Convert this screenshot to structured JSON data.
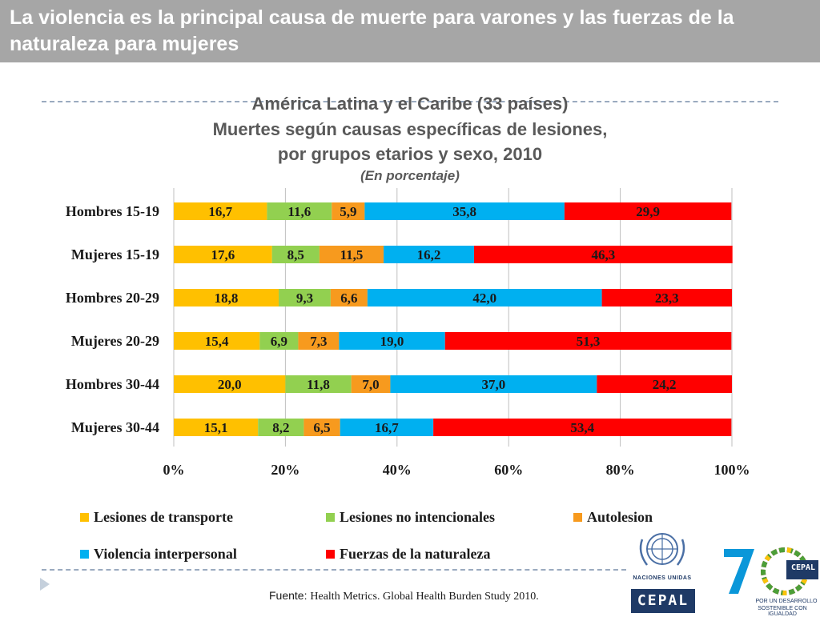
{
  "header": {
    "title": "La violencia es la principal causa de muerte para varones y las fuerzas de la naturaleza para mujeres"
  },
  "chart_data": {
    "type": "bar",
    "orientation": "horizontal",
    "stacked": true,
    "title_lines": [
      "América Latina y el Caribe (33 países)",
      "Muertes según causas específicas de lesiones,",
      "por grupos etarios y sexo, 2010",
      "(En porcentaje)"
    ],
    "categories": [
      "Hombres 15-19",
      "Mujeres 15-19",
      "Hombres 20-29",
      "Mujeres 20-29",
      "Hombres 30-44",
      "Mujeres 30-44"
    ],
    "series": [
      {
        "name": "Lesiones de transporte",
        "color": "#ffc000",
        "values": [
          16.7,
          17.6,
          18.8,
          15.4,
          20.0,
          15.1
        ],
        "labels": [
          "16,7",
          "17,6",
          "18,8",
          "15,4",
          "20,0",
          "15,1"
        ]
      },
      {
        "name": "Lesiones no intencionales",
        "color": "#92d050",
        "values": [
          11.6,
          8.5,
          9.3,
          6.9,
          11.8,
          8.2
        ],
        "labels": [
          "11,6",
          "8,5",
          "9,3",
          "6,9",
          "11,8",
          "8,2"
        ]
      },
      {
        "name": "Autolesion",
        "color": "#f79a1e",
        "values": [
          5.9,
          11.5,
          6.6,
          7.3,
          7.0,
          6.5
        ],
        "labels": [
          "5,9",
          "11,5",
          "6,6",
          "7,3",
          "7,0",
          "6,5"
        ]
      },
      {
        "name": "Violencia interpersonal",
        "color": "#00b0f0",
        "values": [
          35.8,
          16.2,
          42.0,
          19.0,
          37.0,
          16.7
        ],
        "labels": [
          "35,8",
          "16,2",
          "42,0",
          "19,0",
          "37,0",
          "16,7"
        ]
      },
      {
        "name": "Fuerzas de la naturaleza",
        "color": "#ff0000",
        "values": [
          29.9,
          46.3,
          23.3,
          51.3,
          24.2,
          53.4
        ],
        "labels": [
          "29,9",
          "46,3",
          "23,3",
          "51,3",
          "24,2",
          "53,4"
        ]
      }
    ],
    "xlim": [
      0,
      100
    ],
    "x_ticks": [
      "0%",
      "20%",
      "40%",
      "60%",
      "80%",
      "100%"
    ],
    "grid": true,
    "legend_position": "bottom"
  },
  "footer": {
    "source_prefix": "Fuente: ",
    "source_text": "Health Metrics. Global Health Burden Study 2010.",
    "un_label": "NACIONES UNIDAS",
    "cepal_label": "CEPAL",
    "anniversary_number": "70",
    "tagline_line1": "POR UN DESARROLLO",
    "tagline_line2": "SOSTENIBLE CON IGUALDAD"
  }
}
